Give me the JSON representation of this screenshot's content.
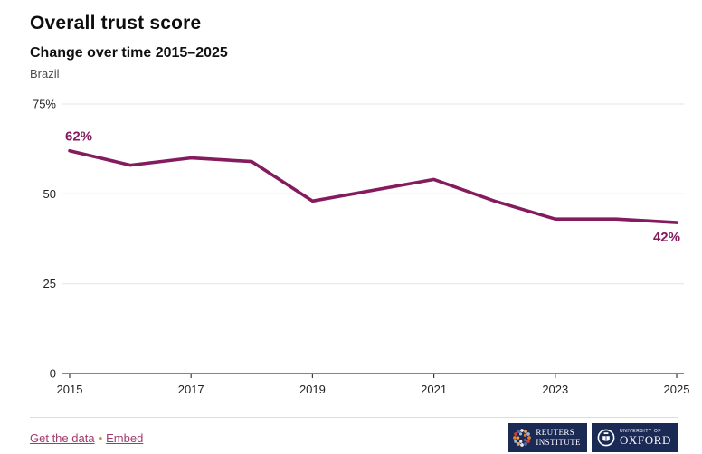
{
  "header": {
    "title": "Overall trust score",
    "subtitle": "Change over time 2015–2025",
    "region": "Brazil"
  },
  "chart_data": {
    "type": "line",
    "title": "Overall trust score",
    "subtitle": "Change over time 2015–2025",
    "region_label": "Brazil",
    "x": [
      2015,
      2016,
      2017,
      2018,
      2019,
      2020,
      2021,
      2022,
      2023,
      2024,
      2025
    ],
    "series": [
      {
        "name": "Overall trust score (%)",
        "values": [
          62,
          58,
          60,
          59,
          48,
          51,
          54,
          48,
          43,
          43,
          42
        ]
      }
    ],
    "ylim": [
      0,
      75
    ],
    "y_tick_values": [
      75,
      50,
      25,
      0
    ],
    "y_tick_labels": [
      "75%",
      "50",
      "25",
      "0"
    ],
    "x_tick_labels": [
      "2015",
      "2017",
      "2019",
      "2021",
      "2023",
      "2025"
    ],
    "grid": "horizontal",
    "legend": "none",
    "first_point_label": "62%",
    "last_point_label": "42%"
  },
  "footer": {
    "get_data_label": "Get the data",
    "separator": "•",
    "embed_label": "Embed",
    "logos": {
      "reuters": {
        "line1": "REUTERS",
        "line2": "INSTITUTE"
      },
      "oxford": {
        "line1": "UNIVERSITY OF",
        "line2": "OXFORD"
      }
    }
  },
  "colors": {
    "line": "#841b5e",
    "point_label": "#841b5e",
    "link": "#a23a6c",
    "bullet": "#dd8b33",
    "grid": "#e4e4e4",
    "axis": "#3c3c3c",
    "logo_navy": "#1b2a55"
  }
}
